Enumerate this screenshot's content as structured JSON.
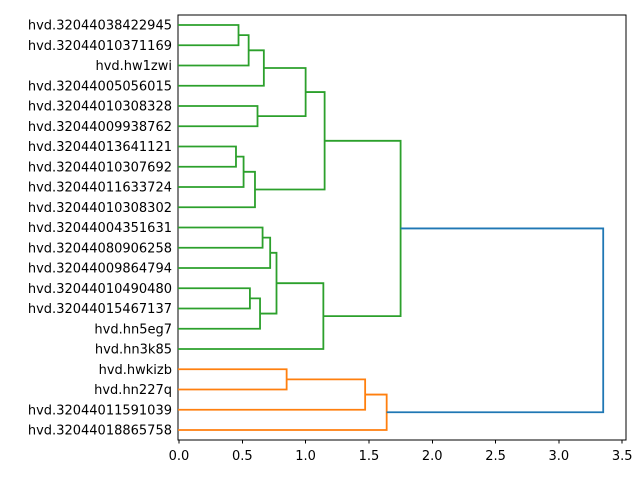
{
  "figure": {
    "kind": "matplotlib-dendrogram-window",
    "background": "#ffffff"
  },
  "chart_data": {
    "type": "dendrogram",
    "orientation": "right",
    "title": "",
    "xlabel": "",
    "ylabel": "",
    "grid": false,
    "xlim": [
      0,
      3.53
    ],
    "xticks": [
      0.0,
      0.5,
      1.0,
      1.5,
      2.0,
      2.5,
      3.0,
      3.5
    ],
    "xtick_labels": [
      "0.0",
      "0.5",
      "1.0",
      "1.5",
      "2.0",
      "2.5",
      "3.0",
      "3.5"
    ],
    "colors": {
      "cluster_green": "#2ca02c",
      "cluster_orange": "#ff7f0e",
      "root_blue": "#1f77b4",
      "spine": "#000000",
      "text": "#000000"
    },
    "leaves": [
      "hvd.32044038422945",
      "hvd.32044010371169",
      "hvd.hw1zwi",
      "hvd.32044005056015",
      "hvd.32044010308328",
      "hvd.32044009938762",
      "hvd.32044013641121",
      "hvd.32044010307692",
      "hvd.32044011633724",
      "hvd.32044010308302",
      "hvd.32044004351631",
      "hvd.32044080906258",
      "hvd.32044009864794",
      "hvd.32044010490480",
      "hvd.32044015467137",
      "hvd.hn5eg7",
      "hvd.hn3k85",
      "hvd.hwkizb",
      "hvd.hn227q",
      "hvd.32044011591039",
      "hvd.32044018865758"
    ],
    "merges": [
      {
        "children": [
          0,
          1
        ],
        "dist": 0.47,
        "color": "#2ca02c"
      },
      {
        "children": [
          21,
          2
        ],
        "dist": 0.55,
        "color": "#2ca02c"
      },
      {
        "children": [
          22,
          3
        ],
        "dist": 0.67,
        "color": "#2ca02c"
      },
      {
        "children": [
          4,
          5
        ],
        "dist": 0.62,
        "color": "#2ca02c"
      },
      {
        "children": [
          23,
          24
        ],
        "dist": 1.0,
        "color": "#2ca02c"
      },
      {
        "children": [
          6,
          7
        ],
        "dist": 0.45,
        "color": "#2ca02c"
      },
      {
        "children": [
          26,
          8
        ],
        "dist": 0.51,
        "color": "#2ca02c"
      },
      {
        "children": [
          27,
          9
        ],
        "dist": 0.6,
        "color": "#2ca02c"
      },
      {
        "children": [
          25,
          28
        ],
        "dist": 1.15,
        "color": "#2ca02c"
      },
      {
        "children": [
          10,
          11
        ],
        "dist": 0.66,
        "color": "#2ca02c"
      },
      {
        "children": [
          30,
          12
        ],
        "dist": 0.72,
        "color": "#2ca02c"
      },
      {
        "children": [
          13,
          14
        ],
        "dist": 0.56,
        "color": "#2ca02c"
      },
      {
        "children": [
          32,
          15
        ],
        "dist": 0.64,
        "color": "#2ca02c"
      },
      {
        "children": [
          31,
          33
        ],
        "dist": 0.77,
        "color": "#2ca02c"
      },
      {
        "children": [
          34,
          16
        ],
        "dist": 1.14,
        "color": "#2ca02c"
      },
      {
        "children": [
          29,
          35
        ],
        "dist": 1.75,
        "color": "#2ca02c"
      },
      {
        "children": [
          17,
          18
        ],
        "dist": 0.85,
        "color": "#ff7f0e"
      },
      {
        "children": [
          37,
          19
        ],
        "dist": 1.47,
        "color": "#ff7f0e"
      },
      {
        "children": [
          38,
          20
        ],
        "dist": 1.64,
        "color": "#ff7f0e"
      },
      {
        "children": [
          36,
          39
        ],
        "dist": 3.35,
        "color": "#1f77b4"
      }
    ]
  }
}
